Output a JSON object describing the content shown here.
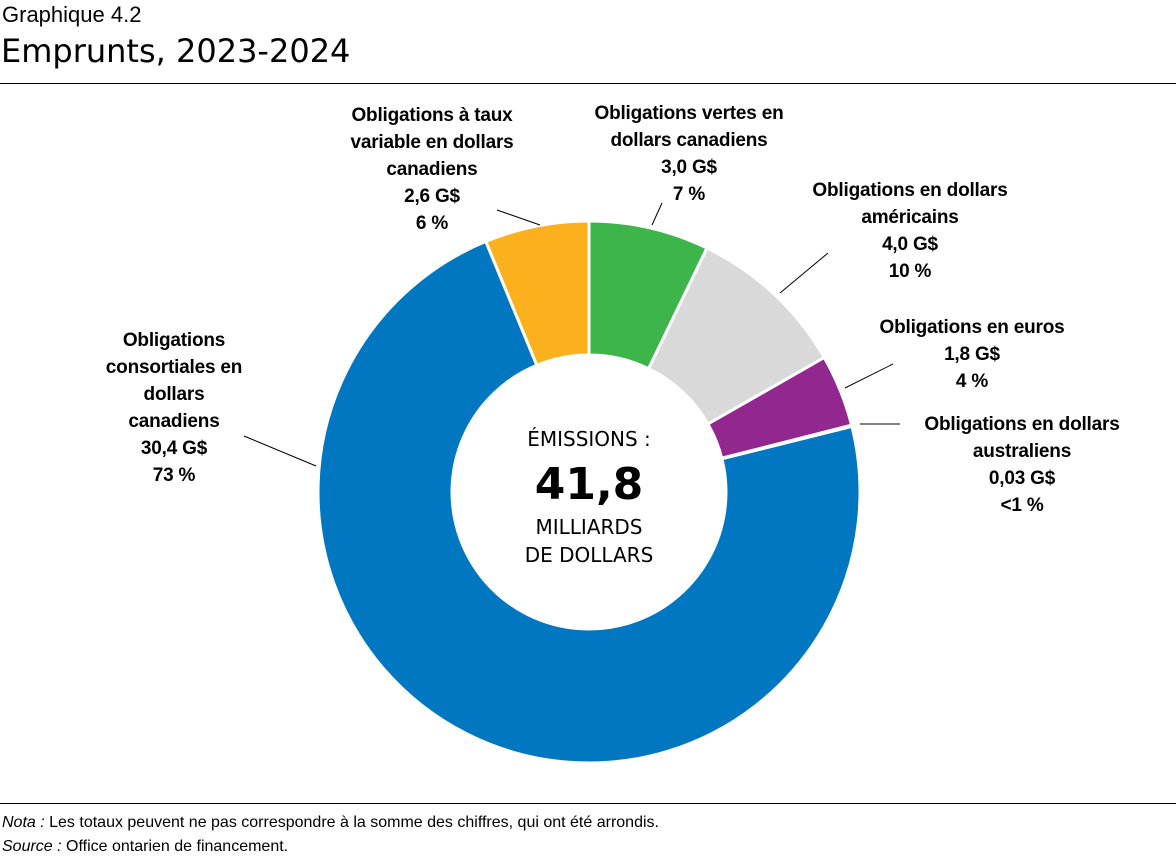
{
  "header": {
    "subtitle": "Graphique 4.2",
    "title": "Emprunts, 2023-2024"
  },
  "chart_data": {
    "type": "pie",
    "variant": "donut",
    "title": "Emprunts, 2023-2024",
    "start": "top, clockwise",
    "center": {
      "line1": "ÉMISSIONS :",
      "value": "41,8",
      "line2": "MILLIARDS",
      "line3": "DE DOLLARS"
    },
    "slices": [
      {
        "key": "vertes",
        "label_lines": [
          "Obligations vertes en",
          "dollars canadiens"
        ],
        "amount": "3,0 G$",
        "pct": "7 %",
        "value": 3.0,
        "color": "#3db54a"
      },
      {
        "key": "usd",
        "label_lines": [
          "Obligations en dollars",
          "américains"
        ],
        "amount": "4,0 G$",
        "pct": "10 %",
        "value": 4.0,
        "color": "#d9d9d9"
      },
      {
        "key": "eur",
        "label_lines": [
          "Obligations en euros"
        ],
        "amount": "1,8 G$",
        "pct": "4 %",
        "value": 1.8,
        "color": "#92278f"
      },
      {
        "key": "aud",
        "label_lines": [
          "Obligations en dollars",
          "australiens"
        ],
        "amount": "0,03 G$",
        "pct": "<1 %",
        "value": 0.03,
        "color": "#3a3a3a"
      },
      {
        "key": "consort",
        "label_lines": [
          "Obligations",
          "consortiales en",
          "dollars",
          "canadiens"
        ],
        "amount": "30,4 G$",
        "pct": "73 %",
        "value": 30.4,
        "color": "#0077c0"
      },
      {
        "key": "variable",
        "label_lines": [
          "Obligations à taux",
          "variable en dollars",
          "canadiens"
        ],
        "amount": "2,6 G$",
        "pct": "6 %",
        "value": 2.6,
        "color": "#fbb01d"
      }
    ]
  },
  "footer": {
    "nota_label": "Nota :",
    "nota": " Les totaux peuvent ne pas correspondre à la somme des chiffres, qui ont été arrondis.",
    "source_label": "Source :",
    "source": " Office ontarien de financement."
  }
}
